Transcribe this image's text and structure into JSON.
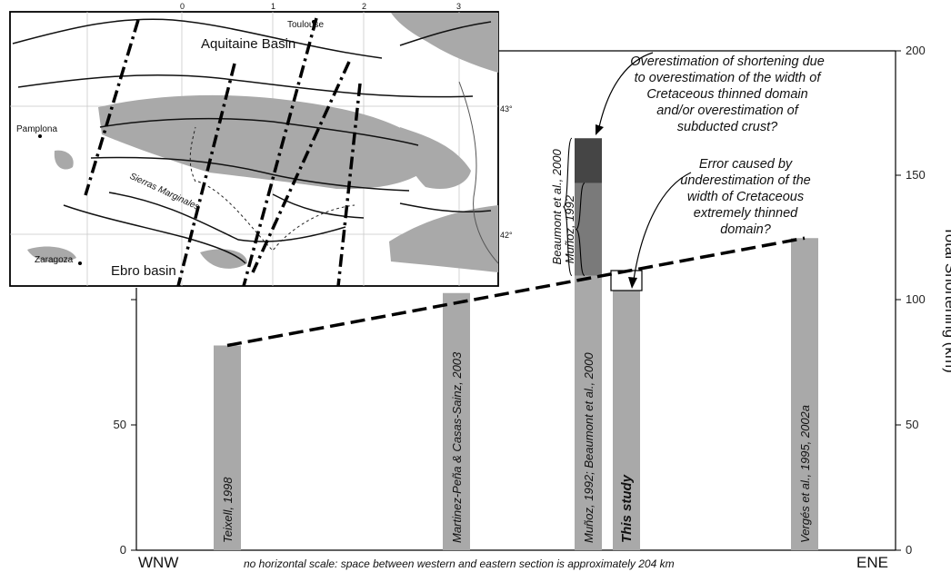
{
  "chart_data": {
    "type": "bar",
    "title": "",
    "ylabel": "Total Shortening (km)",
    "ylim": [
      0,
      200
    ],
    "yticks": [
      0,
      50,
      100,
      150,
      200
    ],
    "yticks_left_visible": [
      "0",
      "50"
    ],
    "x_left_label": "WNW",
    "x_right_label": "ENE",
    "x_note": "no horizontal scale: space between western and eastern section is approximately 204 km",
    "grid": false,
    "bars": [
      {
        "label": "Teixell, 1998",
        "value": 82,
        "bold": false
      },
      {
        "label": "Martinez-Peña & Casas-Sainz, 2003",
        "value": 103,
        "bold": false
      },
      {
        "label": "Muñoz, 1992; Beaumont et al., 2000",
        "value": 110,
        "bold": false
      },
      {
        "label": "This study",
        "value": 104,
        "bold": true
      },
      {
        "label": "Vergés et al., 1995, 2002a",
        "value": 125,
        "bold": false
      }
    ],
    "stacked_segments": [
      {
        "bar": 2,
        "from": 110,
        "to": 147,
        "color": "#7a7a7a"
      },
      {
        "bar": 2,
        "from": 147,
        "to": 165,
        "color": "#454545"
      }
    ],
    "white_box": {
      "bar": 3,
      "from": 104,
      "to": 112
    },
    "brackets": [
      {
        "label": "Beaumont et al., 2000",
        "from": 110,
        "to": 165
      },
      {
        "label": "Muñoz, 1992",
        "from": 110,
        "to": 147
      }
    ],
    "trend_line": {
      "from": [
        0,
        82
      ],
      "to": [
        4,
        125
      ],
      "style": "dashed"
    },
    "annotations": [
      {
        "lines": [
          "Overestimation of shortening due",
          "to overestimation of the width of",
          "Cretaceous thinned domain",
          "and/or overestimation of",
          "subducted crust?"
        ]
      },
      {
        "lines": [
          "Error caused by",
          "underestimation of the",
          "width of Cretaceous",
          "extremely thinned",
          "domain?"
        ]
      }
    ],
    "colors": {
      "bar": "#a9a9a9",
      "mid": "#7a7a7a",
      "dark": "#454545",
      "line": "#000000"
    }
  },
  "inset_map": {
    "labels": {
      "aquitaine": "Aquitaine Basin",
      "toulouse": "Toulouse",
      "pamplona": "Pamplona",
      "zaragoza": "Zaragoza",
      "ebro": "Ebro basin",
      "sierras": "Sierras Marginales",
      "lat43": "43°",
      "lat42": "42°",
      "lon0": "0",
      "lon1": "1",
      "lon2": "2",
      "lon3": "3"
    }
  }
}
